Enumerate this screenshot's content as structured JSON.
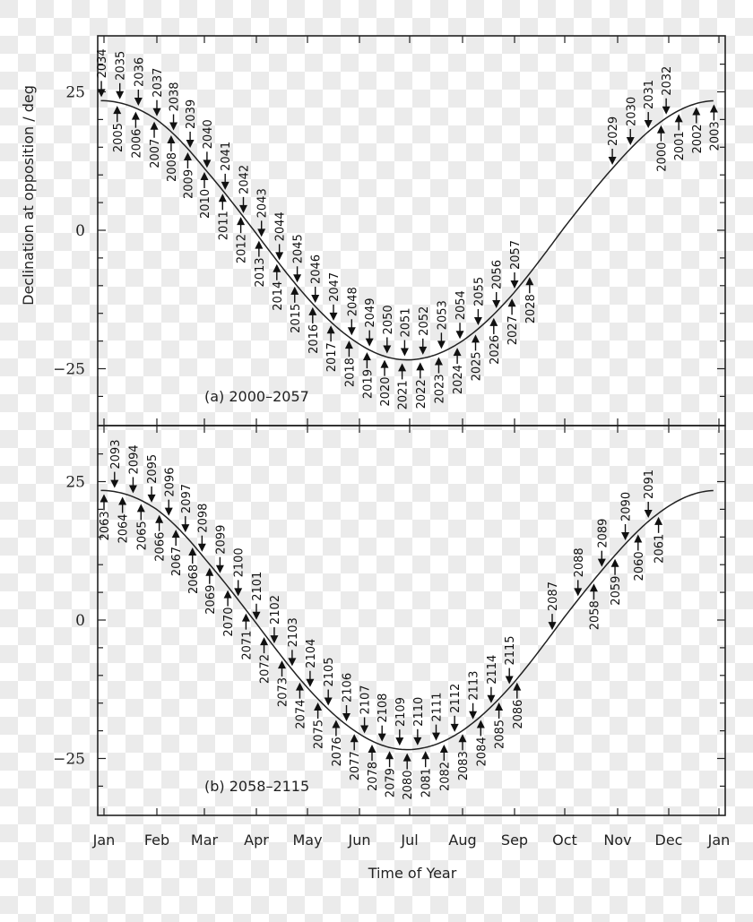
{
  "chart_data": {
    "type": "line",
    "xlabel": "Time of Year",
    "ylabel": "Declination at opposition / deg",
    "x_ticks": [
      "Jan",
      "Feb",
      "Mar",
      "Apr",
      "May",
      "Jun",
      "Jul",
      "Aug",
      "Sep",
      "Oct",
      "Nov",
      "Dec",
      "Jan"
    ],
    "y_ticks": [
      25,
      0,
      -25
    ],
    "y_tick_labels": [
      "25",
      "0",
      "−25"
    ],
    "ylim": [
      -35,
      35
    ],
    "grid": false,
    "curve": {
      "description": "Declination of the Sun-opposite point (ecliptic) vs time of year",
      "max_deg": 23.4,
      "min_deg": -23.4,
      "min_near": "Jul"
    },
    "panels": [
      {
        "label": "(a) 2000–2057",
        "markers_below": [
          {
            "year": "2000",
            "month": 10.85
          },
          {
            "year": "2001",
            "month": 11.2
          },
          {
            "year": "2002",
            "month": 11.55
          },
          {
            "year": "2003",
            "month": 11.9
          },
          {
            "year": "2005",
            "month": 0.25
          },
          {
            "year": "2006",
            "month": 0.6
          },
          {
            "year": "2007",
            "month": 0.95
          },
          {
            "year": "2008",
            "month": 1.3
          },
          {
            "year": "2009",
            "month": 1.65
          },
          {
            "year": "2010",
            "month": 2.0
          },
          {
            "year": "2011",
            "month": 2.35
          },
          {
            "year": "2012",
            "month": 2.7
          },
          {
            "year": "2013",
            "month": 3.05
          },
          {
            "year": "2014",
            "month": 3.4
          },
          {
            "year": "2015",
            "month": 3.75
          },
          {
            "year": "2016",
            "month": 4.1
          },
          {
            "year": "2017",
            "month": 4.45
          },
          {
            "year": "2018",
            "month": 4.8
          },
          {
            "year": "2019",
            "month": 5.15
          },
          {
            "year": "2020",
            "month": 5.5
          },
          {
            "year": "2021",
            "month": 5.85
          },
          {
            "year": "2022",
            "month": 6.2
          },
          {
            "year": "2023",
            "month": 6.55
          },
          {
            "year": "2024",
            "month": 6.9
          },
          {
            "year": "2025",
            "month": 7.25
          },
          {
            "year": "2026",
            "month": 7.6
          },
          {
            "year": "2027",
            "month": 7.95
          },
          {
            "year": "2028",
            "month": 8.3
          }
        ],
        "markers_above": [
          {
            "year": "2029",
            "month": 9.9
          },
          {
            "year": "2030",
            "month": 10.25
          },
          {
            "year": "2031",
            "month": 10.6
          },
          {
            "year": "2032",
            "month": 10.95
          },
          {
            "year": "2034",
            "month": -0.05
          },
          {
            "year": "2035",
            "month": 0.3
          },
          {
            "year": "2036",
            "month": 0.65
          },
          {
            "year": "2037",
            "month": 1.0
          },
          {
            "year": "2038",
            "month": 1.35
          },
          {
            "year": "2039",
            "month": 1.7
          },
          {
            "year": "2040",
            "month": 2.05
          },
          {
            "year": "2041",
            "month": 2.4
          },
          {
            "year": "2042",
            "month": 2.75
          },
          {
            "year": "2043",
            "month": 3.1
          },
          {
            "year": "2044",
            "month": 3.45
          },
          {
            "year": "2045",
            "month": 3.8
          },
          {
            "year": "2046",
            "month": 4.15
          },
          {
            "year": "2047",
            "month": 4.5
          },
          {
            "year": "2048",
            "month": 4.85
          },
          {
            "year": "2049",
            "month": 5.2
          },
          {
            "year": "2050",
            "month": 5.55
          },
          {
            "year": "2051",
            "month": 5.9
          },
          {
            "year": "2052",
            "month": 6.25
          },
          {
            "year": "2053",
            "month": 6.6
          },
          {
            "year": "2054",
            "month": 6.95
          },
          {
            "year": "2055",
            "month": 7.3
          },
          {
            "year": "2056",
            "month": 7.65
          },
          {
            "year": "2057",
            "month": 8.0
          }
        ]
      },
      {
        "label": "(b) 2058–2115",
        "markers_below": [
          {
            "year": "2058",
            "month": 9.55
          },
          {
            "year": "2059",
            "month": 9.95
          },
          {
            "year": "2060",
            "month": 10.4
          },
          {
            "year": "2061",
            "month": 10.8
          },
          {
            "year": "2063",
            "month": 0.0
          },
          {
            "year": "2064",
            "month": 0.35
          },
          {
            "year": "2065",
            "month": 0.7
          },
          {
            "year": "2066",
            "month": 1.05
          },
          {
            "year": "2067",
            "month": 1.4
          },
          {
            "year": "2068",
            "month": 1.75
          },
          {
            "year": "2069",
            "month": 2.1
          },
          {
            "year": "2070",
            "month": 2.45
          },
          {
            "year": "2071",
            "month": 2.8
          },
          {
            "year": "2072",
            "month": 3.15
          },
          {
            "year": "2073",
            "month": 3.5
          },
          {
            "year": "2074",
            "month": 3.85
          },
          {
            "year": "2075",
            "month": 4.2
          },
          {
            "year": "2076",
            "month": 4.55
          },
          {
            "year": "2077",
            "month": 4.9
          },
          {
            "year": "2078",
            "month": 5.25
          },
          {
            "year": "2079",
            "month": 5.6
          },
          {
            "year": "2080",
            "month": 5.95
          },
          {
            "year": "2081",
            "month": 6.3
          },
          {
            "year": "2082",
            "month": 6.65
          },
          {
            "year": "2083",
            "month": 7.0
          },
          {
            "year": "2084",
            "month": 7.35
          },
          {
            "year": "2085",
            "month": 7.7
          },
          {
            "year": "2086",
            "month": 8.05
          }
        ],
        "markers_above": [
          {
            "year": "2087",
            "month": 8.75
          },
          {
            "year": "2088",
            "month": 9.25
          },
          {
            "year": "2089",
            "month": 9.7
          },
          {
            "year": "2090",
            "month": 10.15
          },
          {
            "year": "2091",
            "month": 10.6
          },
          {
            "year": "2093",
            "month": 0.2
          },
          {
            "year": "2094",
            "month": 0.55
          },
          {
            "year": "2095",
            "month": 0.9
          },
          {
            "year": "2096",
            "month": 1.25
          },
          {
            "year": "2097",
            "month": 1.6
          },
          {
            "year": "2098",
            "month": 1.95
          },
          {
            "year": "2099",
            "month": 2.3
          },
          {
            "year": "2100",
            "month": 2.65
          },
          {
            "year": "2101",
            "month": 3.0
          },
          {
            "year": "2102",
            "month": 3.35
          },
          {
            "year": "2103",
            "month": 3.7
          },
          {
            "year": "2104",
            "month": 4.05
          },
          {
            "year": "2105",
            "month": 4.4
          },
          {
            "year": "2106",
            "month": 4.75
          },
          {
            "year": "2107",
            "month": 5.1
          },
          {
            "year": "2108",
            "month": 5.45
          },
          {
            "year": "2109",
            "month": 5.8
          },
          {
            "year": "2110",
            "month": 6.15
          },
          {
            "year": "2111",
            "month": 6.5
          },
          {
            "year": "2112",
            "month": 6.85
          },
          {
            "year": "2113",
            "month": 7.2
          },
          {
            "year": "2114",
            "month": 7.55
          },
          {
            "year": "2115",
            "month": 7.9
          }
        ]
      }
    ]
  },
  "layout_colors": {
    "ink": "#222222",
    "checker": "#ebebeb"
  }
}
